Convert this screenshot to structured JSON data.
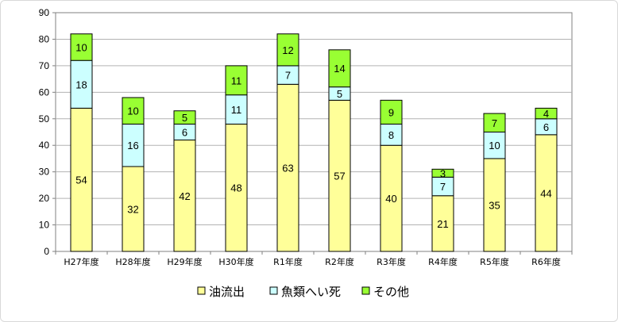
{
  "chart_data": {
    "type": "bar",
    "stacked": true,
    "categories": [
      "H27年度",
      "H28年度",
      "H29年度",
      "H30年度",
      "R1年度",
      "R2年度",
      "R3年度",
      "R4年度",
      "R5年度",
      "R6年度"
    ],
    "series": [
      {
        "name": "油流出",
        "color": "#ffff99",
        "values": [
          54,
          32,
          42,
          48,
          63,
          57,
          40,
          21,
          35,
          44
        ]
      },
      {
        "name": "魚類へい死",
        "color": "#ccffff",
        "values": [
          18,
          16,
          6,
          11,
          7,
          5,
          8,
          7,
          10,
          6
        ]
      },
      {
        "name": "その他",
        "color": "#99ff33",
        "values": [
          10,
          10,
          5,
          11,
          12,
          14,
          9,
          3,
          7,
          4
        ]
      }
    ],
    "ylim": [
      0,
      90
    ],
    "yticks": [
      0,
      10,
      20,
      30,
      40,
      50,
      60,
      70,
      80,
      90
    ],
    "grid": true,
    "data_labels": true,
    "legend_position": "bottom"
  }
}
